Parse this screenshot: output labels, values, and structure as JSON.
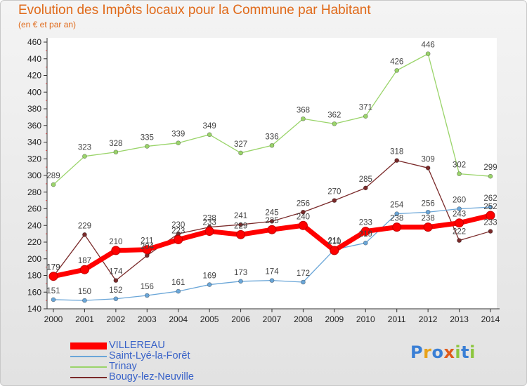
{
  "title": "Evolution des Impôts locaux pour la Commune par Habitant",
  "subtitle": "(en € et par an)",
  "logo": {
    "text": "Proxiti",
    "letter_colors": [
      "#3a7fd5",
      "#e8a21a",
      "#3a7fd5",
      "#e05a1a",
      "#8cc63e",
      "#3a7fd5",
      "#8cc63e"
    ]
  },
  "chart_data": {
    "type": "line",
    "x": [
      "2000",
      "2001",
      "2002",
      "2003",
      "2004",
      "2005",
      "2006",
      "2007",
      "2008",
      "2009",
      "2010",
      "2011",
      "2012",
      "2013",
      "2014"
    ],
    "ylim": [
      140,
      460
    ],
    "yticks": [
      140,
      160,
      180,
      200,
      220,
      240,
      260,
      280,
      300,
      320,
      340,
      360,
      380,
      400,
      420,
      440,
      460
    ],
    "grid": false,
    "legend_position": "bottom-left",
    "series": [
      {
        "name": "VILLEREAU",
        "color": "#ff0000",
        "values": [
          179,
          187,
          210,
          211,
          223,
          233,
          229,
          235,
          240,
          210,
          233,
          238,
          238,
          243,
          252
        ],
        "labels": [
          "179",
          "187",
          "210",
          "211",
          "223",
          "233",
          "229",
          "235",
          "240",
          "210",
          "233",
          "238",
          "238",
          "243",
          "252"
        ]
      },
      {
        "name": "Saint-Lyé-la-Forêt",
        "color": "#6aa6d8",
        "values": [
          151,
          150,
          152,
          156,
          161,
          169,
          173,
          174,
          172,
          211,
          219,
          254,
          256,
          260,
          262
        ],
        "labels": [
          "151",
          "150",
          "152",
          "156",
          "161",
          "169",
          "173",
          "174",
          "172",
          "211",
          "219",
          "254",
          "256",
          "260",
          "262"
        ]
      },
      {
        "name": "Trinay",
        "color": "#9ad46a",
        "values": [
          289,
          323,
          328,
          335,
          339,
          349,
          327,
          336,
          368,
          362,
          371,
          426,
          446,
          302,
          299
        ],
        "labels": [
          "289",
          "323",
          "328",
          "335",
          "339",
          "349",
          "327",
          "336",
          "368",
          "362",
          "371",
          "426",
          "446",
          "302",
          "299"
        ]
      },
      {
        "name": "Bougy-lez-Neuville",
        "color": "#7a2a2a",
        "values": [
          179,
          229,
          174,
          204,
          230,
          238,
          241,
          245,
          256,
          270,
          285,
          318,
          309,
          222,
          233
        ],
        "labels": [
          "179",
          "229",
          "174",
          "204",
          "230",
          "238",
          "241",
          "245",
          "256",
          "270",
          "285",
          "318",
          "309",
          "222",
          "233"
        ]
      }
    ]
  }
}
